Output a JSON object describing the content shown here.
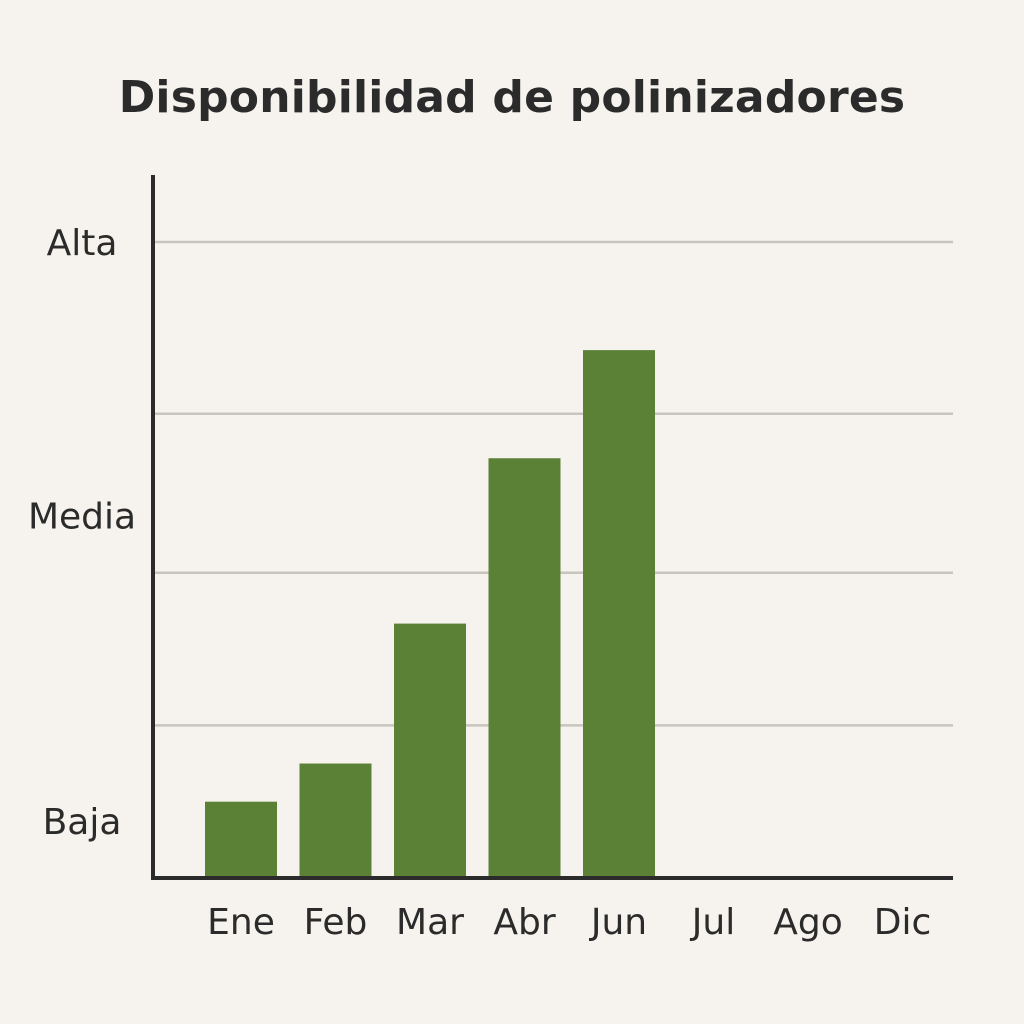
{
  "chart_data": {
    "type": "bar",
    "title": "Disponibilidad de polinizadores",
    "xlabel": "",
    "ylabel": "",
    "categories": [
      "Ene",
      "Feb",
      "Mar",
      "Abr",
      "Jun",
      "Jul",
      "Ago",
      "Dic"
    ],
    "values": [
      1.2,
      1.8,
      4.0,
      6.6,
      8.3,
      null,
      null,
      null
    ],
    "ylim": [
      0,
      10
    ],
    "yticks": [
      {
        "label": "Baja",
        "value": 0.9
      },
      {
        "label": "Media",
        "value": 5.7
      },
      {
        "label": "Alta",
        "value": 10
      }
    ],
    "gridlines": [
      2.4,
      4.8,
      7.3,
      10
    ],
    "grid": true,
    "colors": {
      "bar": "#5b8136",
      "axis": "#2b2b2b",
      "grid": "#c8c5bf",
      "background": "#f6f3ee"
    }
  }
}
